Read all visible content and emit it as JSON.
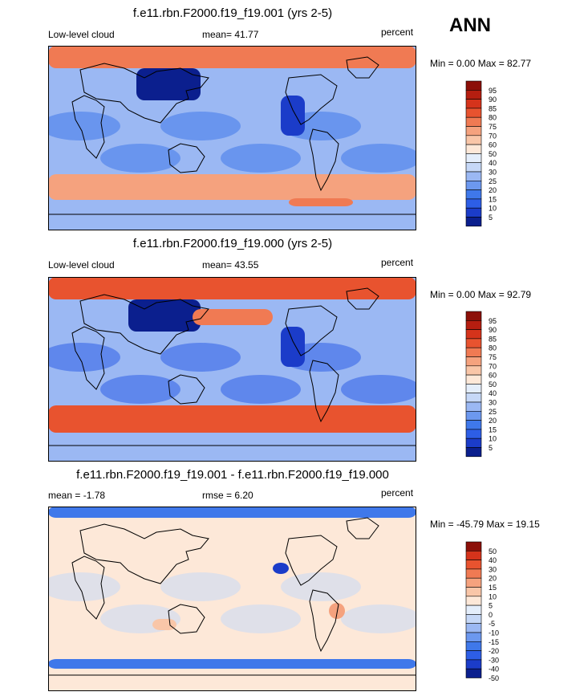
{
  "header": {
    "season": "ANN"
  },
  "colors": {
    "land": "#000000",
    "scale_abs": [
      "#0b1f8e",
      "#1b3cc9",
      "#2d5ee6",
      "#3f78ea",
      "#6c98ef",
      "#9bb8f3",
      "#c6d8f7",
      "#e4eefb",
      "#fde8d8",
      "#f9c6a8",
      "#f5a27e",
      "#f07a53",
      "#e8532f",
      "#d5331b",
      "#b51e10",
      "#8c0f08"
    ],
    "scale_diff": [
      "#0b1f8e",
      "#1b3cc9",
      "#2d5ee6",
      "#3f78ea",
      "#6c98ef",
      "#9bb8f3",
      "#c6d8f7",
      "#e4eefb",
      "#fde8d8",
      "#f9c6a8",
      "#f5a27e",
      "#f07a53",
      "#e8532f",
      "#d5331b",
      "#8c0f08"
    ]
  },
  "chart_data": [
    {
      "type": "heatmap",
      "title": "f.e11.rbn.F2000.f19_f19.001 (yrs 2-5)",
      "left_label": "Low-level cloud",
      "stat_label": "mean=  41.77",
      "units": "percent",
      "minmax": "Min =   0.00 Max =  82.77",
      "levels": [
        "95",
        "90",
        "85",
        "80",
        "75",
        "70",
        "60",
        "50",
        "40",
        "30",
        "25",
        "20",
        "15",
        "10",
        "5"
      ]
    },
    {
      "type": "heatmap",
      "title": "f.e11.rbn.F2000.f19_f19.000 (yrs 2-5)",
      "left_label": "Low-level cloud",
      "stat_label": "mean=  43.55",
      "units": "percent",
      "minmax": "Min =   0.00 Max =  92.79",
      "levels": [
        "95",
        "90",
        "85",
        "80",
        "75",
        "70",
        "60",
        "50",
        "40",
        "30",
        "25",
        "20",
        "15",
        "10",
        "5"
      ]
    },
    {
      "type": "heatmap",
      "title": "f.e11.rbn.F2000.f19_f19.001 - f.e11.rbn.F2000.f19_f19.000",
      "left_label": "mean =  -1.78",
      "stat_label": "rmse =   6.20",
      "units": "percent",
      "minmax": "Min = -45.79 Max =  19.15",
      "levels": [
        "50",
        "40",
        "30",
        "20",
        "15",
        "10",
        "5",
        "0",
        "-5",
        "-10",
        "-15",
        "-20",
        "-30",
        "-40",
        "-50"
      ]
    }
  ]
}
